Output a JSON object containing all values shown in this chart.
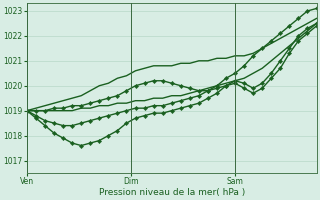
{
  "xlabel": "Pression niveau de la mer( hPa )",
  "bg_color": "#d8ede4",
  "grid_color": "#b8d8c8",
  "line_color": "#1a6020",
  "ylim": [
    1016.5,
    1023.3
  ],
  "yticks": [
    1017,
    1018,
    1019,
    1020,
    1021,
    1022,
    1023
  ],
  "xtick_labels": [
    "Ven",
    "Dim",
    "Sam"
  ],
  "xtick_positions": [
    0.0,
    0.36,
    0.72
  ],
  "vline_positions": [
    0.0,
    0.36,
    0.72
  ],
  "series": [
    {
      "y": [
        1019.0,
        1019.0,
        1019.0,
        1019.1,
        1019.1,
        1019.2,
        1019.2,
        1019.3,
        1019.4,
        1019.5,
        1019.6,
        1019.8,
        1020.0,
        1020.1,
        1020.2,
        1020.2,
        1020.1,
        1020.0,
        1019.9,
        1019.8,
        1019.8,
        1020.0,
        1020.3,
        1020.5,
        1020.8,
        1021.2,
        1021.5,
        1021.8,
        1022.1,
        1022.4,
        1022.7,
        1023.0,
        1023.1
      ],
      "marker": true,
      "lw": 1.0
    },
    {
      "y": [
        1019.0,
        1018.8,
        1018.6,
        1018.5,
        1018.4,
        1018.4,
        1018.5,
        1018.6,
        1018.7,
        1018.8,
        1018.9,
        1019.0,
        1019.1,
        1019.1,
        1019.2,
        1019.2,
        1019.3,
        1019.4,
        1019.5,
        1019.6,
        1019.8,
        1019.9,
        1020.0,
        1020.1,
        1019.9,
        1019.7,
        1019.9,
        1020.3,
        1020.7,
        1021.3,
        1021.8,
        1022.1,
        1022.4
      ],
      "marker": true,
      "lw": 1.0
    },
    {
      "y": [
        1019.0,
        1018.7,
        1018.4,
        1018.1,
        1017.9,
        1017.7,
        1017.6,
        1017.7,
        1017.8,
        1018.0,
        1018.2,
        1018.5,
        1018.7,
        1018.8,
        1018.9,
        1018.9,
        1019.0,
        1019.1,
        1019.2,
        1019.3,
        1019.5,
        1019.7,
        1020.0,
        1020.2,
        1020.1,
        1019.9,
        1020.1,
        1020.5,
        1021.0,
        1021.5,
        1022.0,
        1022.3,
        1022.5
      ],
      "marker": true,
      "lw": 1.0
    },
    {
      "y": [
        1019.0,
        1019.1,
        1019.2,
        1019.3,
        1019.4,
        1019.5,
        1019.6,
        1019.8,
        1020.0,
        1020.1,
        1020.3,
        1020.4,
        1020.6,
        1020.7,
        1020.8,
        1020.8,
        1020.8,
        1020.9,
        1020.9,
        1021.0,
        1021.0,
        1021.1,
        1021.1,
        1021.2,
        1021.2,
        1021.3,
        1021.5,
        1021.7,
        1021.9,
        1022.1,
        1022.3,
        1022.5,
        1022.7
      ],
      "marker": false,
      "lw": 1.0
    },
    {
      "y": [
        1019.0,
        1019.0,
        1019.0,
        1019.0,
        1019.0,
        1019.0,
        1019.1,
        1019.1,
        1019.2,
        1019.2,
        1019.3,
        1019.3,
        1019.4,
        1019.4,
        1019.5,
        1019.5,
        1019.6,
        1019.6,
        1019.7,
        1019.8,
        1019.9,
        1020.0,
        1020.1,
        1020.2,
        1020.3,
        1020.5,
        1020.7,
        1021.0,
        1021.3,
        1021.6,
        1021.9,
        1022.2,
        1022.5
      ],
      "marker": false,
      "lw": 1.0
    }
  ]
}
